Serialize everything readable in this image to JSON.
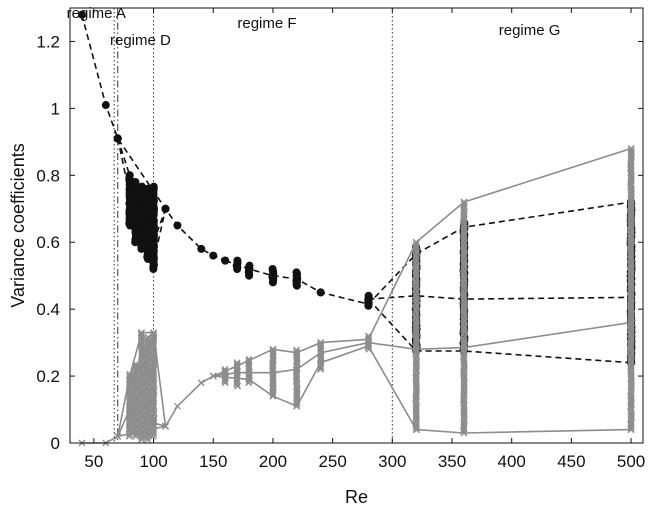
{
  "chart_data": {
    "type": "scatter",
    "title": "",
    "xlabel": "Re",
    "ylabel": "Variance coefficients",
    "xlim": [
      30,
      510
    ],
    "ylim": [
      0,
      1.3
    ],
    "xticks": [
      50,
      100,
      150,
      200,
      250,
      300,
      350,
      400,
      450,
      500
    ],
    "yticks": [
      0,
      0.2,
      0.4,
      0.6,
      0.8,
      1,
      1.2
    ],
    "xtick_labels": [
      "50",
      "100",
      "150",
      "200",
      "250",
      "300",
      "350",
      "400",
      "450",
      "500"
    ],
    "ytick_labels": [
      "0",
      "0.2",
      "0.4",
      "0.6",
      "0.8",
      "1",
      "1.2"
    ],
    "grid": false,
    "regime_boundaries": [
      {
        "x": 67,
        "style": "dotted"
      },
      {
        "x": 70,
        "style": "dashdot"
      },
      {
        "x": 100,
        "style": "dotted"
      },
      {
        "x": 300,
        "style": "dotted"
      }
    ],
    "regime_labels": [
      {
        "text": "regime A",
        "x": 52,
        "y": 1.27
      },
      {
        "text": "regime D",
        "x": 89,
        "y": 1.19
      },
      {
        "text": "regime F",
        "x": 195,
        "y": 1.24
      },
      {
        "text": "regime G",
        "x": 415,
        "y": 1.22
      }
    ],
    "series": [
      {
        "marker": "circle",
        "color": "#111111",
        "line": "dashed",
        "main_points": [
          [
            40,
            1.28
          ],
          [
            60,
            1.01
          ],
          [
            70,
            0.91
          ],
          [
            110,
            0.7
          ],
          [
            120,
            0.65
          ],
          [
            140,
            0.58
          ],
          [
            150,
            0.56
          ],
          [
            160,
            0.545
          ],
          [
            240,
            0.45
          ],
          [
            280,
            0.43
          ],
          [
            360,
            0.65
          ],
          [
            500,
            0.72
          ]
        ],
        "branches": [
          [
            [
              70,
              0.91
            ],
            [
              80,
              0.8
            ],
            [
              90,
              0.68
            ],
            [
              100,
              0.6
            ],
            [
              110,
              0.7
            ]
          ],
          [
            [
              70,
              0.91
            ],
            [
              80,
              0.74
            ],
            [
              90,
              0.62
            ],
            [
              100,
              0.54
            ],
            [
              110,
              0.7
            ]
          ],
          [
            [
              160,
              0.545
            ],
            [
              180,
              0.52
            ],
            [
              200,
              0.5
            ],
            [
              220,
              0.49
            ],
            [
              240,
              0.45
            ],
            [
              280,
              0.415
            ],
            [
              320,
              0.565
            ],
            [
              360,
              0.645
            ],
            [
              500,
              0.72
            ]
          ],
          [
            [
              280,
              0.43
            ],
            [
              320,
              0.275
            ],
            [
              360,
              0.275
            ],
            [
              500,
              0.24
            ]
          ],
          [
            [
              280,
              0.43
            ],
            [
              320,
              0.44
            ],
            [
              360,
              0.43
            ],
            [
              500,
              0.435
            ]
          ]
        ],
        "clusters": [
          {
            "x": 80,
            "y_min": 0.65,
            "y_max": 0.8
          },
          {
            "x": 85,
            "y_min": 0.6,
            "y_max": 0.78
          },
          {
            "x": 90,
            "y_min": 0.58,
            "y_max": 0.77
          },
          {
            "x": 95,
            "y_min": 0.55,
            "y_max": 0.76
          },
          {
            "x": 100,
            "y_min": 0.52,
            "y_max": 0.77
          },
          {
            "x": 170,
            "y_min": 0.52,
            "y_max": 0.545
          },
          {
            "x": 180,
            "y_min": 0.5,
            "y_max": 0.53
          },
          {
            "x": 200,
            "y_min": 0.48,
            "y_max": 0.52
          },
          {
            "x": 220,
            "y_min": 0.47,
            "y_max": 0.51
          },
          {
            "x": 280,
            "y_min": 0.41,
            "y_max": 0.44
          },
          {
            "x": 320,
            "y_min": 0.28,
            "y_max": 0.59
          },
          {
            "x": 360,
            "y_min": 0.28,
            "y_max": 0.66
          },
          {
            "x": 500,
            "y_min": 0.24,
            "y_max": 0.72
          }
        ]
      },
      {
        "marker": "x",
        "color": "#8c8c8c",
        "line": "solid",
        "main_points": [
          [
            40,
            0.0
          ],
          [
            60,
            0.0
          ],
          [
            70,
            0.02
          ],
          [
            110,
            0.05
          ],
          [
            120,
            0.11
          ],
          [
            140,
            0.18
          ],
          [
            150,
            0.2
          ]
        ],
        "branches": [
          [
            [
              70,
              0.02
            ],
            [
              80,
              0.2
            ],
            [
              90,
              0.33
            ],
            [
              100,
              0.33
            ],
            [
              110,
              0.05
            ]
          ],
          [
            [
              70,
              0.02
            ],
            [
              80,
              0.1
            ],
            [
              90,
              0.15
            ],
            [
              100,
              0.06
            ],
            [
              110,
              0.05
            ]
          ],
          [
            [
              150,
              0.2
            ],
            [
              170,
              0.23
            ],
            [
              200,
              0.28
            ],
            [
              220,
              0.27
            ],
            [
              240,
              0.3
            ],
            [
              280,
              0.31
            ],
            [
              320,
              0.6
            ],
            [
              360,
              0.72
            ],
            [
              500,
              0.88
            ]
          ],
          [
            [
              150,
              0.2
            ],
            [
              170,
              0.21
            ],
            [
              200,
              0.21
            ],
            [
              220,
              0.22
            ],
            [
              240,
              0.27
            ],
            [
              280,
              0.3
            ],
            [
              320,
              0.28
            ],
            [
              360,
              0.285
            ],
            [
              500,
              0.36
            ]
          ],
          [
            [
              150,
              0.2
            ],
            [
              180,
              0.19
            ],
            [
              200,
              0.14
            ],
            [
              220,
              0.11
            ],
            [
              240,
              0.24
            ],
            [
              280,
              0.29
            ],
            [
              320,
              0.04
            ],
            [
              360,
              0.03
            ],
            [
              500,
              0.04
            ]
          ]
        ],
        "clusters": [
          {
            "x": 80,
            "y_min": 0.02,
            "y_max": 0.21
          },
          {
            "x": 85,
            "y_min": 0.02,
            "y_max": 0.24
          },
          {
            "x": 90,
            "y_min": 0.01,
            "y_max": 0.33
          },
          {
            "x": 95,
            "y_min": 0.01,
            "y_max": 0.32
          },
          {
            "x": 100,
            "y_min": 0.02,
            "y_max": 0.33
          },
          {
            "x": 160,
            "y_min": 0.18,
            "y_max": 0.22
          },
          {
            "x": 170,
            "y_min": 0.17,
            "y_max": 0.24
          },
          {
            "x": 180,
            "y_min": 0.18,
            "y_max": 0.25
          },
          {
            "x": 200,
            "y_min": 0.14,
            "y_max": 0.28
          },
          {
            "x": 220,
            "y_min": 0.11,
            "y_max": 0.28
          },
          {
            "x": 240,
            "y_min": 0.22,
            "y_max": 0.3
          },
          {
            "x": 280,
            "y_min": 0.28,
            "y_max": 0.32
          },
          {
            "x": 320,
            "y_min": 0.04,
            "y_max": 0.6
          },
          {
            "x": 360,
            "y_min": 0.03,
            "y_max": 0.72
          },
          {
            "x": 500,
            "y_min": 0.04,
            "y_max": 0.88
          }
        ]
      }
    ]
  }
}
